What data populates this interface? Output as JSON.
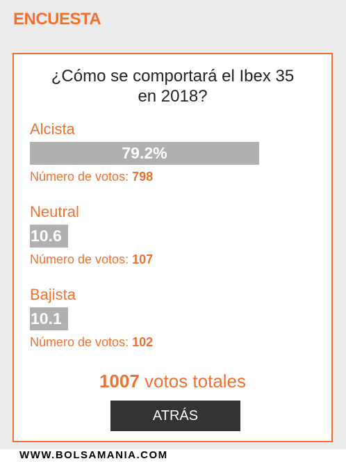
{
  "header": {
    "title": "ENCUESTA"
  },
  "poll": {
    "question_line1": "¿Cómo se comportará el Ibex 35",
    "question_line2": "en 2018?",
    "votes_prefix": "Número de votos:",
    "options": [
      {
        "label": "Alcista",
        "bar_text": "79.2%",
        "percent": 79.2,
        "votes": "798"
      },
      {
        "label": "Neutral",
        "bar_text": "10.6",
        "percent": 10.6,
        "votes": "107"
      },
      {
        "label": "Bajista",
        "bar_text": "10.1",
        "percent": 10.1,
        "votes": "102"
      }
    ],
    "total_count": "1007",
    "total_suffix": "votos totales",
    "back_label": "ATRÁS"
  },
  "footer": {
    "site": "WWW.BOLSAMANIA.COM"
  },
  "colors": {
    "accent": "#f07030",
    "bar": "#b0b0b0",
    "button": "#333333"
  }
}
